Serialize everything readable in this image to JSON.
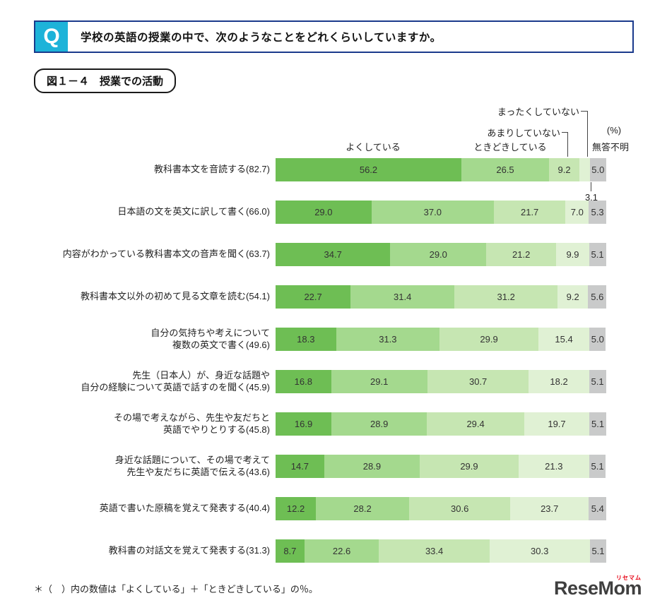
{
  "header": {
    "q_label": "Q",
    "question": "学校の英語の授業の中で、次のようなことをどれくらいしていますか。"
  },
  "figure_label": "図１－４　授業での活動",
  "chart_data": {
    "type": "bar",
    "subtype": "horizontal-stacked-100pct",
    "title": "授業での活動",
    "unit": "%",
    "unit_label": "(%)",
    "xlim": [
      0,
      100
    ],
    "legend_position": "top",
    "legend": [
      "よくしている",
      "ときどきしている",
      "あまりしていない",
      "まったくしていない",
      "無答不明"
    ],
    "colors": [
      "#6ebe54",
      "#a4d98e",
      "#c6e6b2",
      "#e0f1d4",
      "#c9caca"
    ],
    "categories": [
      "教科書本文を音読する(82.7)",
      "日本語の文を英文に訳して書く(66.0)",
      "内容がわかっている教科書本文の音声を聞く(63.7)",
      "教科書本文以外の初めて見る文章を読む(54.1)",
      "自分の気持ちや考えについて\n複数の英文で書く(49.6)",
      "先生（日本人）が、身近な話題や\n自分の経験について英語で話すのを聞く(45.9)",
      "その場で考えながら、先生や友だちと\n英語でやりとりする(45.8)",
      "身近な話題について、その場で考えて\n先生や友だちに英語で伝える(43.6)",
      "英語で書いた原稿を覚えて発表する(40.4)",
      "教科書の対話文を覚えて発表する(31.3)"
    ],
    "series": [
      {
        "name": "よくしている",
        "values": [
          56.2,
          29.0,
          34.7,
          22.7,
          18.3,
          16.8,
          16.9,
          14.7,
          12.2,
          8.7
        ]
      },
      {
        "name": "ときどきしている",
        "values": [
          26.5,
          37.0,
          29.0,
          31.4,
          31.3,
          29.1,
          28.9,
          28.9,
          28.2,
          22.6
        ]
      },
      {
        "name": "あまりしていない",
        "values": [
          9.2,
          21.7,
          21.2,
          31.2,
          29.9,
          30.7,
          29.4,
          29.9,
          30.6,
          33.4
        ]
      },
      {
        "name": "まったくしていない",
        "values": [
          3.1,
          7.0,
          9.9,
          9.2,
          15.4,
          18.2,
          19.7,
          21.3,
          23.7,
          30.3
        ]
      },
      {
        "name": "無答不明",
        "values": [
          5.0,
          5.3,
          5.1,
          5.6,
          5.0,
          5.1,
          5.1,
          5.1,
          5.4,
          5.1
        ]
      }
    ],
    "callout": {
      "category_index": 0,
      "series_index": 3,
      "value": "3.1"
    }
  },
  "footnote": "＊（　）内の数値は「よくしている」＋「ときどきしている」の％。",
  "logo": {
    "text": "ReseMom",
    "ruby": "リセマム"
  }
}
